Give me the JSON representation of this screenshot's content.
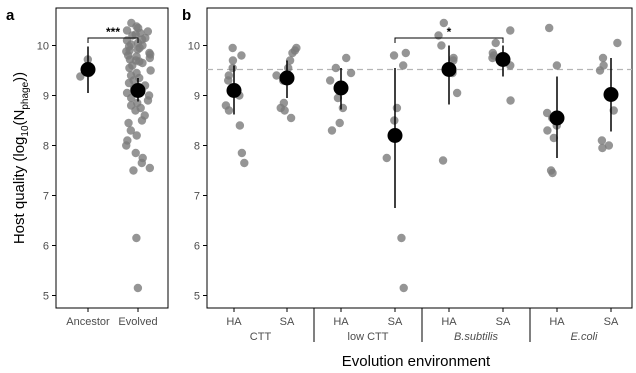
{
  "colors": {
    "raw_point": "#7a7a7a",
    "mean_point": "#000000",
    "ancestor_line": "#b5b5b5",
    "axis": "#000000",
    "tick_label": "#4d4d4d"
  },
  "chart_data": [
    {
      "type": "scatter",
      "panel_label": "a",
      "title": "",
      "ylabel": "Host quality (log10(Nphage))",
      "ylabel_parts": {
        "pre": "Host quality (log",
        "sub1": "10",
        "mid": "(N",
        "sub2": "phage",
        "post": "))"
      },
      "ylim": [
        4.75,
        10.75
      ],
      "yticks": [
        5,
        6,
        7,
        8,
        9,
        10
      ],
      "categories": [
        "Ancestor",
        "Evolved"
      ],
      "raw_points": [
        [
          9.72,
          9.45,
          9.38
        ],
        [
          10.45,
          10.38,
          10.35,
          10.3,
          10.28,
          10.25,
          10.22,
          10.2,
          10.15,
          10.12,
          10.1,
          10.05,
          10.02,
          10.0,
          9.98,
          9.95,
          9.92,
          9.9,
          9.88,
          9.85,
          9.82,
          9.8,
          9.78,
          9.75,
          9.72,
          9.7,
          9.68,
          9.65,
          9.6,
          9.55,
          9.5,
          9.45,
          9.4,
          9.35,
          9.3,
          9.25,
          9.2,
          9.15,
          9.1,
          9.05,
          9.0,
          8.95,
          8.9,
          8.85,
          8.8,
          8.75,
          8.7,
          8.6,
          8.5,
          8.45,
          8.3,
          8.2,
          8.1,
          8.0,
          7.85,
          7.75,
          7.65,
          7.55,
          7.5,
          6.15,
          5.15
        ]
      ],
      "means": [
        9.52,
        9.1
      ],
      "ci": [
        [
          9.05,
          9.98
        ],
        [
          8.88,
          9.35
        ]
      ],
      "significance": [
        {
          "from": 0,
          "to": 1,
          "label": "***"
        }
      ]
    },
    {
      "type": "scatter",
      "panel_label": "b",
      "title": "",
      "xlabel": "Evolution environment",
      "ylim": [
        4.75,
        10.75
      ],
      "yticks": [
        5,
        6,
        7,
        8,
        9,
        10
      ],
      "reference_line": 9.52,
      "categories": [
        "HA",
        "SA",
        "HA",
        "SA",
        "HA",
        "SA",
        "HA",
        "SA"
      ],
      "groups": [
        {
          "label": "CTT",
          "italic": false
        },
        {
          "label": "low CTT",
          "italic": false
        },
        {
          "label": "B.subtilis",
          "italic": true
        },
        {
          "label": "E.coli",
          "italic": true
        }
      ],
      "raw_points": [
        [
          9.95,
          9.8,
          9.7,
          9.55,
          9.4,
          9.3,
          9.0,
          8.8,
          8.7,
          8.4,
          7.85,
          7.65
        ],
        [
          9.95,
          9.9,
          9.85,
          9.7,
          9.55,
          9.4,
          9.3,
          8.85,
          8.75,
          8.7,
          8.55
        ],
        [
          9.75,
          9.55,
          9.45,
          9.3,
          8.95,
          8.75,
          8.45,
          8.3
        ],
        [
          9.85,
          9.8,
          9.6,
          8.75,
          8.5,
          7.75,
          6.15,
          5.15
        ],
        [
          10.45,
          10.2,
          10.0,
          9.75,
          9.7,
          9.45,
          9.05,
          7.7
        ],
        [
          10.3,
          10.05,
          9.85,
          9.8,
          9.75,
          9.7,
          9.6,
          8.9
        ],
        [
          10.35,
          9.6,
          8.65,
          8.55,
          8.4,
          8.3,
          8.15,
          7.5,
          7.45
        ],
        [
          10.05,
          9.75,
          9.6,
          9.5,
          8.7,
          8.1,
          8.0,
          7.95
        ]
      ],
      "means": [
        9.1,
        9.35,
        9.15,
        8.2,
        9.52,
        9.72,
        8.55,
        9.02
      ],
      "ci": [
        [
          8.62,
          9.6
        ],
        [
          8.95,
          9.7
        ],
        [
          8.72,
          9.55
        ],
        [
          6.75,
          9.55
        ],
        [
          8.82,
          10.0
        ],
        [
          9.38,
          10.0
        ],
        [
          7.75,
          9.38
        ],
        [
          8.28,
          9.75
        ]
      ],
      "significance": [
        {
          "from": 3,
          "to": 5,
          "label": "*"
        }
      ]
    }
  ]
}
